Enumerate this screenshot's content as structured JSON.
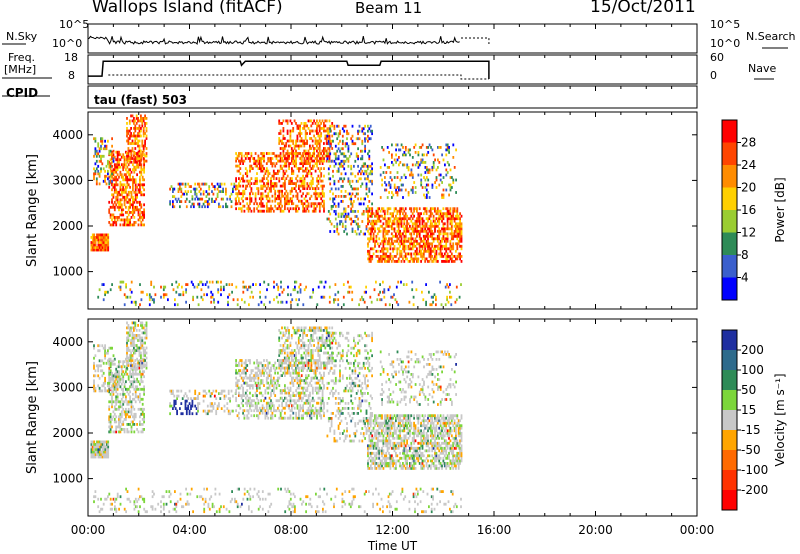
{
  "header": {
    "title": "Wallops Island (fitACF)",
    "beam": "Beam 11",
    "date": "15/Oct/2011"
  },
  "nsky_panel": {
    "left_label": "N.Sky",
    "right_label": "N.Search",
    "left_ticks": [
      "10^5",
      "10^0"
    ],
    "right_ticks": [
      "10^5",
      "10^0"
    ]
  },
  "freq_panel": {
    "left_label_1": "Freq.",
    "left_label_2": "[MHz]",
    "left_ticks": [
      "18",
      "8"
    ],
    "right_label": "Nave",
    "right_ticks": [
      "60",
      "0"
    ]
  },
  "cpid_panel": {
    "left_label": "CPID",
    "mode_text": "tau (fast) 503"
  },
  "x_axis": {
    "label": "Time UT",
    "ticks": [
      "00:00",
      "04:00",
      "08:00",
      "12:00",
      "16:00",
      "20:00",
      "00:00"
    ]
  },
  "chart_data": [
    {
      "type": "heatmap",
      "name": "power",
      "ylabel": "Slant Range [km]",
      "ylim": [
        180,
        4500
      ],
      "yticks": [
        1000,
        2000,
        3000,
        4000
      ],
      "ytick_labels": [
        "1000",
        "2000",
        "3000",
        "4000"
      ],
      "xlim": [
        0,
        24
      ],
      "colorbar": {
        "label": "Power [dB]",
        "tick_labels": [
          "28",
          "24",
          "20",
          "16",
          "12",
          "8",
          "4"
        ],
        "colors": [
          "#ff0000",
          "#ff4500",
          "#ff8c00",
          "#ffd000",
          "#9acd32",
          "#2e8b57",
          "#3a5fcd",
          "#0000ff"
        ]
      }
    },
    {
      "type": "heatmap",
      "name": "velocity",
      "ylabel": "Slant Range [km]",
      "ylim": [
        180,
        4500
      ],
      "yticks": [
        1000,
        2000,
        3000,
        4000
      ],
      "ytick_labels": [
        "1000",
        "2000",
        "3000",
        "4000"
      ],
      "xlim": [
        0,
        24
      ],
      "colorbar": {
        "label": "Velocity [m s⁻¹]",
        "tick_labels": [
          "200",
          "100",
          "50",
          "15",
          "-15",
          "-50",
          "-100",
          "-200"
        ],
        "colors": [
          "#1f2fa0",
          "#2e6b8c",
          "#2e8b57",
          "#7cd63a",
          "#c8c8c8",
          "#ffa500",
          "#ff6a00",
          "#ff3300",
          "#ff0000"
        ]
      }
    }
  ]
}
